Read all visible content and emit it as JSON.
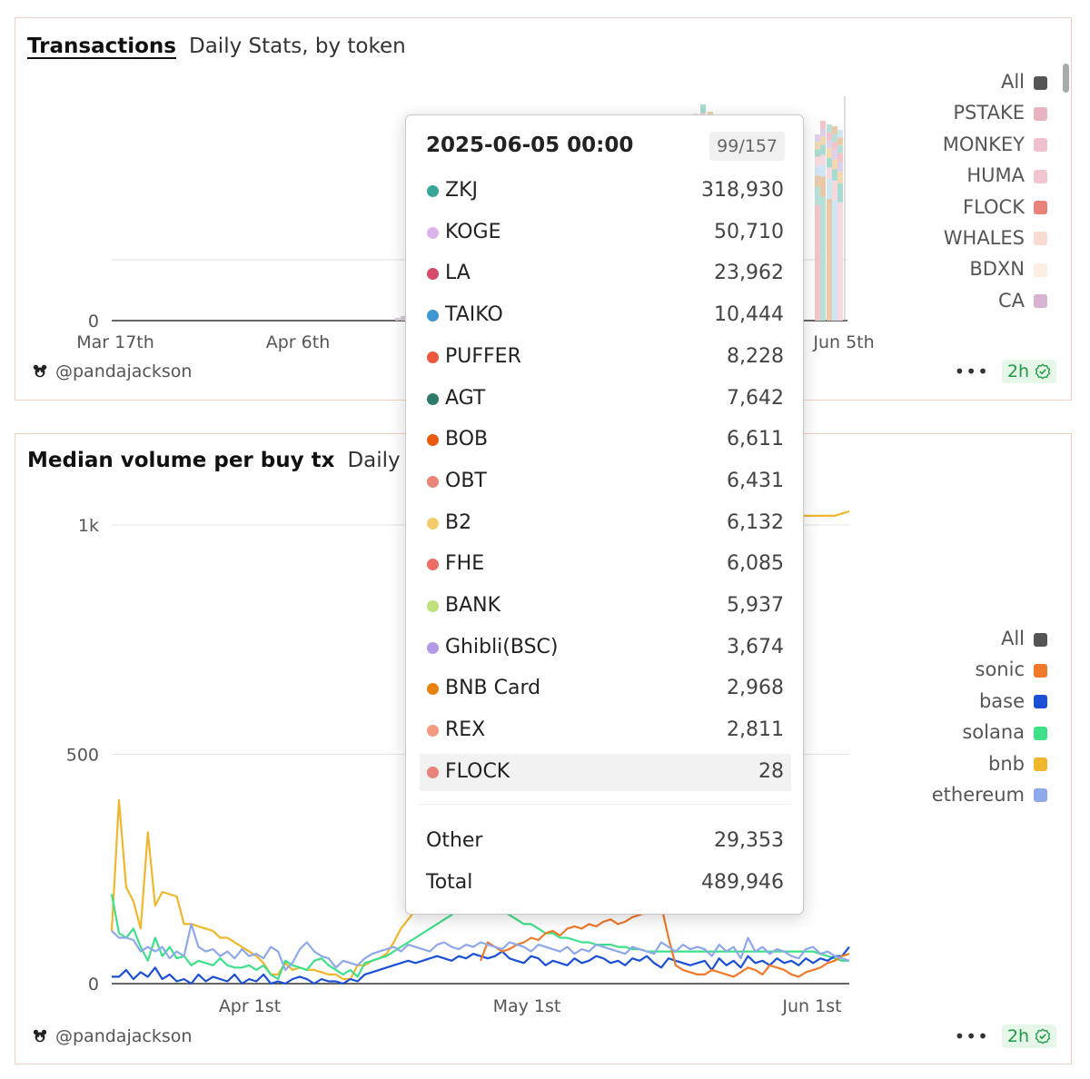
{
  "chart1": {
    "title": "Transactions",
    "subtitle": "Daily Stats, by token",
    "y_ticks": [
      {
        "label": "0"
      }
    ],
    "x_ticks": [
      {
        "label": "Mar 17th"
      },
      {
        "label": "Apr 6th"
      },
      {
        "label": "Jun 5th"
      }
    ],
    "legend": [
      {
        "label": "All",
        "color": "#555555"
      },
      {
        "label": "PSTAKE",
        "color": "#e8b4c0"
      },
      {
        "label": "MONKEY",
        "color": "#f0c0cc"
      },
      {
        "label": "HUMA",
        "color": "#f2c6ce"
      },
      {
        "label": "FLOCK",
        "color": "#e8837c"
      },
      {
        "label": "WHALES",
        "color": "#f8dcd2"
      },
      {
        "label": "BDXN",
        "color": "#fbeee2"
      },
      {
        "label": "CA",
        "color": "#d7b3d4"
      }
    ],
    "user": "@pandajackson",
    "badge": "2h"
  },
  "chart2": {
    "title": "Median volume per buy tx",
    "subtitle": "Daily Stats",
    "y_ticks": [
      {
        "label": "1k"
      },
      {
        "label": "500"
      },
      {
        "label": "0"
      }
    ],
    "x_ticks": [
      {
        "label": "Apr 1st"
      },
      {
        "label": "May 1st"
      },
      {
        "label": "Jun 1st"
      }
    ],
    "legend": [
      {
        "label": "All",
        "color": "#555555"
      },
      {
        "label": "sonic",
        "color": "#f07a2a"
      },
      {
        "label": "base",
        "color": "#1a4fd6"
      },
      {
        "label": "solana",
        "color": "#3ee08a"
      },
      {
        "label": "bnb",
        "color": "#f1b72c"
      },
      {
        "label": "ethereum",
        "color": "#8fa8ea"
      }
    ],
    "user": "@pandajackson",
    "badge": "2h"
  },
  "tooltip": {
    "date": "2025-06-05 00:00",
    "count": "99/157",
    "rows": [
      {
        "name": "ZKJ",
        "value": "318,930",
        "color": "#3aa69a"
      },
      {
        "name": "KOGE",
        "value": "50,710",
        "color": "#dcb4ec"
      },
      {
        "name": "LA",
        "value": "23,962",
        "color": "#d64a6a"
      },
      {
        "name": "TAIKO",
        "value": "10,444",
        "color": "#3f97d0"
      },
      {
        "name": "PUFFER",
        "value": "8,228",
        "color": "#ec5a3e"
      },
      {
        "name": "AGT",
        "value": "7,642",
        "color": "#2e7a6a"
      },
      {
        "name": "BOB",
        "value": "6,611",
        "color": "#ea5a10"
      },
      {
        "name": "OBT",
        "value": "6,431",
        "color": "#e88576"
      },
      {
        "name": "B2",
        "value": "6,132",
        "color": "#f2cc6a"
      },
      {
        "name": "FHE",
        "value": "6,085",
        "color": "#ec6e66"
      },
      {
        "name": "BANK",
        "value": "5,937",
        "color": "#bfe07a"
      },
      {
        "name": "Ghibli(BSC)",
        "value": "3,674",
        "color": "#b49ae6"
      },
      {
        "name": "BNB Card",
        "value": "2,968",
        "color": "#e8820e"
      },
      {
        "name": "REX",
        "value": "2,811",
        "color": "#f29a7e"
      },
      {
        "name": "FLOCK",
        "value": "28",
        "color": "#e8837c"
      }
    ],
    "other_label": "Other",
    "other_value": "29,353",
    "total_label": "Total",
    "total_value": "489,946"
  },
  "chart_data": [
    {
      "type": "bar",
      "title": "Transactions",
      "subtitle": "Daily Stats, by token",
      "stacked": true,
      "x_tick_labels": [
        "Mar 17th",
        "Apr 6th",
        "Jun 5th"
      ],
      "series_names": [
        "All",
        "PSTAKE",
        "MONKEY",
        "HUMA",
        "FLOCK",
        "WHALES",
        "BDXN",
        "CA"
      ],
      "hovered": {
        "x": "2025-06-05",
        "total": 489946,
        "other": 29353,
        "values": {
          "ZKJ": 318930,
          "KOGE": 50710,
          "LA": 23962,
          "TAIKO": 10444,
          "PUFFER": 8228,
          "AGT": 7642,
          "BOB": 6611,
          "OBT": 6431,
          "B2": 6132,
          "FHE": 6085,
          "BANK": 5937,
          "Ghibli(BSC)": 3674,
          "BNB Card": 2968,
          "REX": 2811,
          "FLOCK": 28
        }
      },
      "legend_position": "right"
    },
    {
      "type": "line",
      "title": "Median volume per buy tx",
      "subtitle": "Daily Stats",
      "x_start": "2025-03-19",
      "y_ticks": [
        0,
        500,
        1000
      ],
      "ylim": [
        0,
        1000
      ],
      "x_tick_labels": [
        "Apr 1st",
        "May 1st",
        "Jun 1st"
      ],
      "legend_position": "right",
      "series": [
        {
          "name": "bnb",
          "color": "#f1b72c",
          "values": [
            115,
            400,
            210,
            180,
            120,
            330,
            170,
            200,
            195,
            190,
            130,
            130,
            125,
            120,
            115,
            100,
            100,
            90,
            80,
            70,
            60,
            45,
            20,
            20,
            45,
            30,
            35,
            30,
            30,
            25,
            20,
            20,
            10,
            10,
            40,
            40,
            50,
            55,
            65,
            90,
            120,
            140,
            160,
            180,
            170,
            190,
            210,
            225,
            235,
            240,
            245,
            240,
            235,
            240,
            250,
            260,
            260,
            265,
            270,
            270,
            275,
            280,
            280,
            290,
            300,
            305,
            310,
            320,
            325,
            330,
            335,
            340,
            345,
            350,
            360,
            360,
            1020,
            1020,
            1020,
            1020,
            1020,
            1020,
            1020,
            1020,
            1020,
            1020,
            1020,
            1020,
            1020,
            1020,
            1025,
            1025,
            1020,
            1020,
            1020,
            1020,
            1020,
            1020,
            1020,
            1020,
            1020,
            1025,
            1030
          ]
        },
        {
          "name": "solana",
          "color": "#3ee08a",
          "values": [
            195,
            110,
            100,
            120,
            80,
            50,
            100,
            60,
            80,
            55,
            60,
            40,
            50,
            45,
            40,
            55,
            40,
            35,
            35,
            40,
            30,
            40,
            20,
            10,
            50,
            40,
            35,
            30,
            50,
            55,
            40,
            30,
            20,
            30,
            15,
            45,
            50,
            55,
            60,
            70,
            80,
            90,
            100,
            110,
            120,
            130,
            140,
            150,
            160,
            170,
            180,
            190,
            200,
            180,
            160,
            150,
            140,
            130,
            130,
            120,
            110,
            110,
            100,
            100,
            95,
            90,
            90,
            85,
            85,
            85,
            80,
            80,
            75,
            75,
            70,
            70,
            70,
            70,
            70,
            70,
            70,
            70,
            70,
            70,
            70,
            70,
            70,
            70,
            70,
            70,
            70,
            70,
            70,
            70,
            70,
            70,
            70,
            70,
            65,
            60,
            55,
            50,
            50
          ]
        },
        {
          "name": "base",
          "color": "#1a4fd6",
          "values": [
            15,
            15,
            30,
            10,
            25,
            15,
            35,
            10,
            20,
            5,
            10,
            0,
            20,
            5,
            15,
            10,
            5,
            20,
            0,
            10,
            5,
            20,
            0,
            5,
            0,
            10,
            15,
            10,
            0,
            10,
            5,
            5,
            0,
            10,
            5,
            20,
            25,
            30,
            35,
            40,
            45,
            50,
            45,
            50,
            55,
            60,
            55,
            50,
            60,
            55,
            65,
            60,
            55,
            60,
            70,
            55,
            50,
            45,
            60,
            55,
            40,
            50,
            45,
            40,
            55,
            45,
            50,
            60,
            55,
            45,
            50,
            40,
            55,
            50,
            60,
            45,
            35,
            55,
            50,
            45,
            40,
            45,
            50,
            30,
            55,
            40,
            50,
            35,
            60,
            45,
            50,
            40,
            55,
            45,
            50,
            40,
            55,
            45,
            55,
            50,
            60,
            60,
            80
          ]
        },
        {
          "name": "sonic",
          "color": "#f07a2a",
          "values": [
            null,
            null,
            null,
            null,
            null,
            null,
            null,
            null,
            null,
            null,
            null,
            null,
            null,
            null,
            null,
            null,
            null,
            null,
            null,
            null,
            null,
            null,
            null,
            null,
            null,
            null,
            null,
            null,
            null,
            null,
            null,
            null,
            null,
            null,
            null,
            null,
            null,
            null,
            null,
            null,
            null,
            null,
            null,
            null,
            null,
            null,
            null,
            null,
            null,
            null,
            null,
            50,
            90,
            80,
            70,
            75,
            85,
            90,
            100,
            95,
            110,
            115,
            105,
            120,
            125,
            120,
            130,
            125,
            135,
            140,
            130,
            135,
            145,
            150,
            155,
            160,
            170,
            100,
            40,
            30,
            25,
            20,
            20,
            30,
            25,
            20,
            15,
            25,
            35,
            30,
            20,
            40,
            35,
            30,
            20,
            15,
            25,
            30,
            35,
            45,
            50,
            60,
            65
          ]
        },
        {
          "name": "ethereum",
          "color": "#8fa8ea",
          "values": [
            115,
            100,
            100,
            95,
            70,
            80,
            70,
            80,
            55,
            70,
            60,
            130,
            80,
            70,
            75,
            60,
            70,
            55,
            75,
            60,
            65,
            55,
            80,
            70,
            30,
            45,
            75,
            90,
            70,
            60,
            55,
            35,
            50,
            45,
            40,
            55,
            65,
            70,
            75,
            80,
            70,
            85,
            80,
            75,
            70,
            85,
            90,
            80,
            75,
            85,
            80,
            90,
            85,
            80,
            75,
            90,
            85,
            80,
            70,
            85,
            80,
            75,
            70,
            80,
            65,
            75,
            70,
            85,
            80,
            75,
            70,
            65,
            80,
            75,
            70,
            65,
            90,
            80,
            70,
            85,
            75,
            80,
            75,
            60,
            85,
            70,
            80,
            55,
            100,
            70,
            80,
            65,
            75,
            70,
            60,
            55,
            75,
            80,
            65,
            70,
            60,
            55,
            50
          ]
        }
      ]
    }
  ]
}
